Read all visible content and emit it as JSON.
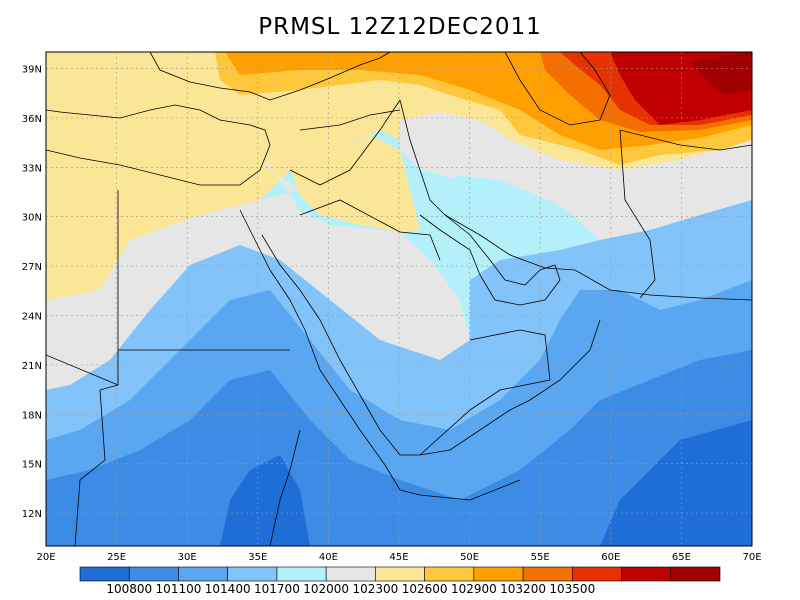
{
  "title": "PRMSL 12Z12DEC2011",
  "lon_ticks": [
    "20E",
    "25E",
    "30E",
    "35E",
    "40E",
    "45E",
    "50E",
    "55E",
    "60E",
    "65E",
    "70E"
  ],
  "lat_ticks": [
    "39N",
    "36N",
    "33N",
    "30N",
    "27N",
    "24N",
    "21N",
    "18N",
    "15N",
    "12N"
  ],
  "lon_range": [
    20,
    70
  ],
  "lat_range": [
    10,
    40
  ],
  "colorbar": {
    "colors": [
      "#1e6ed7",
      "#3c8ce6",
      "#5aa6f0",
      "#82c3fa",
      "#b4f0fa",
      "#e6e6e6",
      "#fae696",
      "#ffc83c",
      "#ffa000",
      "#f56e00",
      "#e63200",
      "#c00000",
      "#a00000"
    ],
    "labels": [
      "100800",
      "101100",
      "101400",
      "101700",
      "102000",
      "102300",
      "102600",
      "102900",
      "103200",
      "103500"
    ]
  },
  "chart_data": {
    "type": "heatmap",
    "title": "PRMSL 12Z12DEC2011",
    "xlabel": "",
    "ylabel": "",
    "x_ticks": [
      "20E",
      "25E",
      "30E",
      "35E",
      "40E",
      "45E",
      "50E",
      "55E",
      "60E",
      "65E",
      "70E"
    ],
    "y_ticks": [
      "12N",
      "15N",
      "18N",
      "21N",
      "24N",
      "27N",
      "30N",
      "33N",
      "36N",
      "39N"
    ],
    "levels": [
      100800,
      101100,
      101400,
      101700,
      102000,
      102300,
      102600,
      102900,
      103200,
      103500
    ],
    "grid": true
  }
}
